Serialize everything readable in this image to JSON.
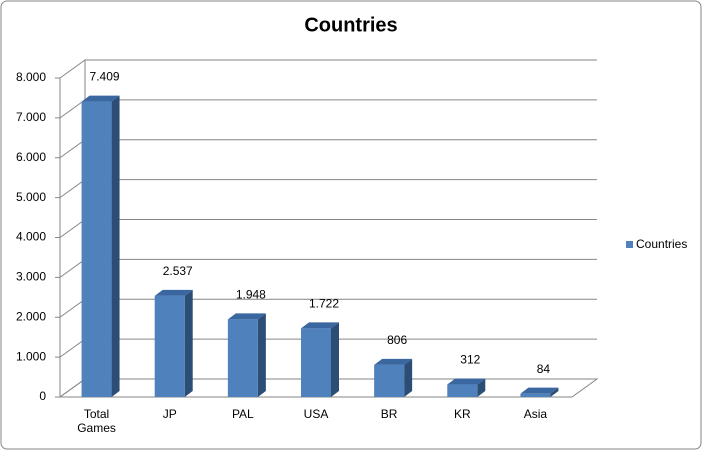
{
  "chart_data": {
    "type": "bar3d",
    "title": "Countries",
    "categories": [
      "Total Games",
      "JP",
      "PAL",
      "USA",
      "BR",
      "KR",
      "Asia"
    ],
    "series": [
      {
        "name": "Countries",
        "color": "#4f81bd",
        "values": [
          7409,
          2537,
          1948,
          1722,
          806,
          312,
          84
        ],
        "value_labels": [
          "7.409",
          "2.537",
          "1.948",
          "1.722",
          "806",
          "312",
          "84"
        ]
      }
    ],
    "ylim": [
      0,
      8000
    ],
    "yticks": [
      0,
      {
        "value": 1000,
        "label": "1.000"
      },
      {
        "value": 2000,
        "label": "2.000"
      },
      {
        "value": 3000,
        "label": "3.000"
      },
      {
        "value": 4000,
        "label": "4.000"
      },
      {
        "value": 5000,
        "label": "5.000"
      },
      {
        "value": 6000,
        "label": "6.000"
      },
      {
        "value": 7000,
        "label": "7.000"
      },
      {
        "value": 8000,
        "label": "8.000"
      }
    ],
    "grid": true,
    "legend": "right"
  }
}
